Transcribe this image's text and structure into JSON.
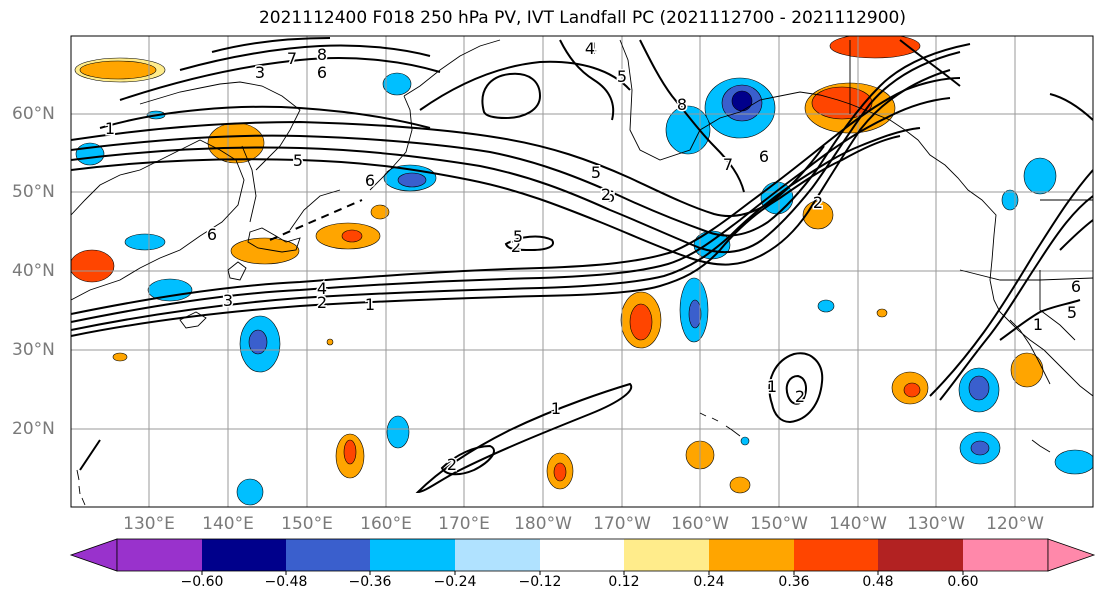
{
  "title": "2021112400 F018 250 hPa PV, IVT Landfall PC (2021112700 - 2021112900)",
  "lat_labels": [
    "60°N",
    "50°N",
    "40°N",
    "30°N",
    "20°N"
  ],
  "lon_labels": [
    "130°E",
    "140°E",
    "150°E",
    "160°E",
    "170°E",
    "180°W",
    "170°W",
    "160°W",
    "150°W",
    "140°W",
    "130°W",
    "120°W"
  ],
  "colorbar": {
    "tick_labels": [
      "−0.60",
      "−0.48",
      "−0.36",
      "−0.24",
      "−0.12",
      "0.12",
      "0.24",
      "0.36",
      "0.48",
      "0.60"
    ],
    "colors": [
      "#9932cc",
      "#00008b",
      "#3a5fcd",
      "#00bfff",
      "#b0e2ff",
      "#ffffff",
      "#ffec8b",
      "#ffa500",
      "#ff4500",
      "#b22222",
      "#ff88aa"
    ]
  },
  "contour_labels": [
    "1",
    "3",
    "7",
    "8",
    "6",
    "5",
    "6",
    "4",
    "3",
    "2",
    "1",
    "2",
    "1",
    "6",
    "5",
    "6",
    "5",
    "4",
    "2",
    "7",
    "6",
    "2",
    "1",
    "2",
    "2",
    "1",
    "5",
    "6",
    "8",
    "5",
    "4"
  ]
}
